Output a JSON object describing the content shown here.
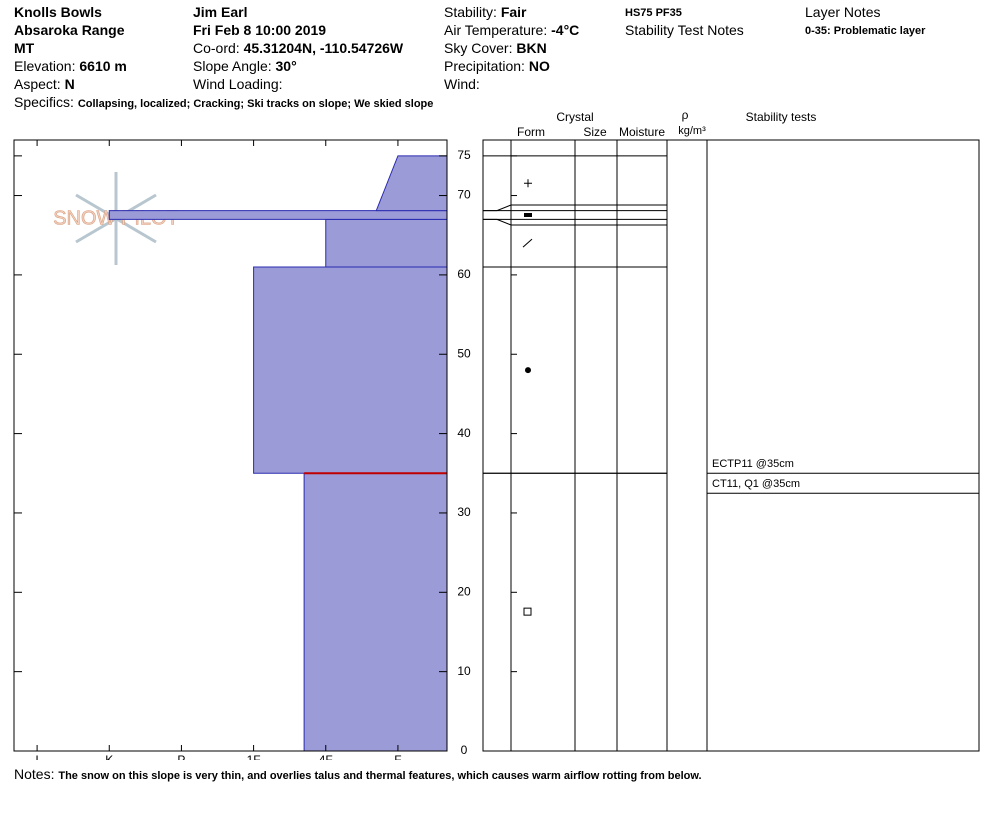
{
  "header": {
    "location": "Knolls Bowls",
    "range": "Absaroka Range",
    "state": "MT",
    "elevation_label": "Elevation:",
    "elevation": "6610 m",
    "aspect_label": "Aspect:",
    "aspect": "N",
    "observer": "Jim Earl",
    "date": "Fri Feb 8 10:00 2019",
    "coord_label": "Co-ord:",
    "coord": "45.31204N, -110.54726W",
    "slope_label": "Slope Angle:",
    "slope": "30°",
    "wind_loading_label": "Wind Loading:",
    "stability_label": "Stability:",
    "stability": "Fair",
    "air_temp_label": "Air Temperature:",
    "air_temp": "-4°C",
    "sky_label": "Sky Cover:",
    "sky": "BKN",
    "precip_label": "Precipitation:",
    "precip": "NO",
    "wind_label": "Wind:",
    "hs": "HS75 PF35",
    "stability_notes": "Stability Test Notes",
    "layer_notes": "Layer Notes",
    "layer_note": "0-35: Problematic layer",
    "specifics_label": "Specifics:",
    "specifics": "Collapsing, localized; Cracking; Ski tracks on slope; We skied slope"
  },
  "logo": "SNOW PILOT",
  "columns": {
    "crystal": "Crystal",
    "form": "Form",
    "size": "Size",
    "moisture": "Moisture",
    "rho": "ρ",
    "density_unit": "kg/m³",
    "stability_tests": "Stability tests"
  },
  "stability_tests": [
    "ECTP11 @35cm",
    "CT11, Q1 @35cm"
  ],
  "notes_label": "Notes:",
  "notes": "The snow on this slope is very thin, and overlies talus and thermal features, which causes warm airflow rotting from below.",
  "chart_data": {
    "type": "profile",
    "ylim": [
      0,
      77
    ],
    "yticks": [
      0,
      10,
      20,
      30,
      40,
      50,
      60,
      70,
      75
    ],
    "xlim": [
      6.32,
      0.32
    ],
    "xticks": [
      {
        "value": 6,
        "label": "I"
      },
      {
        "value": 5,
        "label": "K"
      },
      {
        "value": 4,
        "label": "P"
      },
      {
        "value": 3,
        "label": "1F"
      },
      {
        "value": 2,
        "label": "4F"
      },
      {
        "value": 1,
        "label": "F"
      }
    ],
    "color": "#9b9bd7",
    "critical_depth": 35,
    "layers": [
      {
        "bottom": 0,
        "top": 35,
        "hardness": [
          2.3,
          2.3
        ]
      },
      {
        "bottom": 35,
        "top": 61,
        "hardness": [
          3,
          3
        ]
      },
      {
        "bottom": 61,
        "top": 67,
        "hardness": [
          2,
          2
        ]
      },
      {
        "bottom": 67,
        "top": 68.1,
        "hardness": [
          5,
          5
        ]
      },
      {
        "bottom": 68.1,
        "top": 75,
        "hardness": [
          1.3,
          1
        ]
      }
    ]
  }
}
